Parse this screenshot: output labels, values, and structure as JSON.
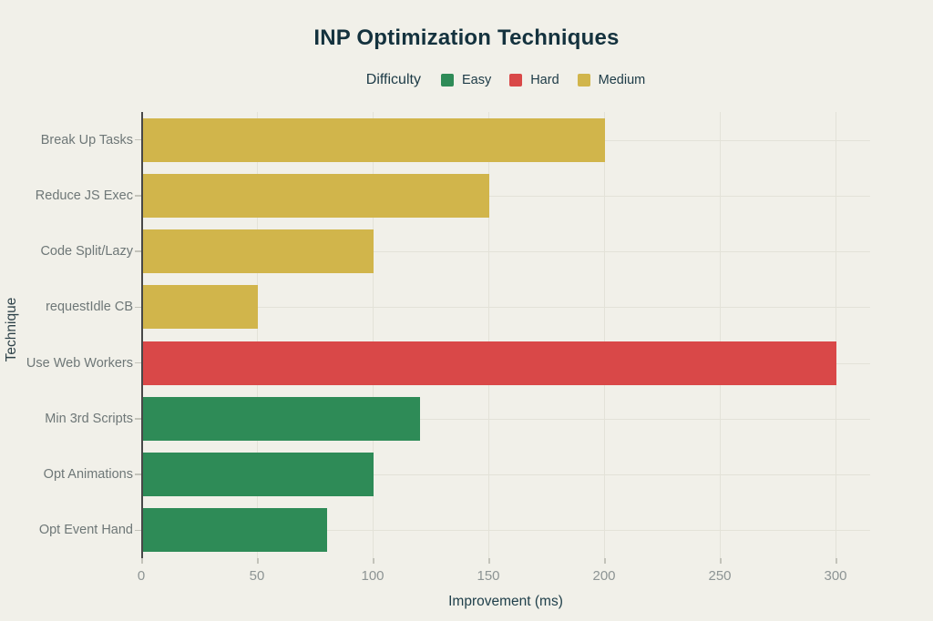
{
  "title": "INP Optimization Techniques",
  "legend": {
    "title": "Difficulty",
    "items": [
      {
        "label": "Easy",
        "color": "#2e8b57"
      },
      {
        "label": "Hard",
        "color": "#d94848"
      },
      {
        "label": "Medium",
        "color": "#d1b54b"
      }
    ]
  },
  "axes": {
    "xlabel": "Improvement (ms)",
    "ylabel": "Technique"
  },
  "chart_data": {
    "type": "bar",
    "orientation": "horizontal",
    "title": "INP Optimization Techniques",
    "xlabel": "Improvement (ms)",
    "ylabel": "Technique",
    "xlim": [
      0,
      300
    ],
    "xticks": [
      0,
      50,
      100,
      150,
      200,
      250,
      300
    ],
    "grid": true,
    "legend_title": "Difficulty",
    "legend_position": "top",
    "categories": [
      "Break Up Tasks",
      "Reduce JS Exec",
      "Code Split/Lazy",
      "requestIdle CB",
      "Use Web Workers",
      "Min 3rd Scripts",
      "Opt Animations",
      "Opt Event Hand"
    ],
    "series": [
      {
        "name": "Improvement (ms)",
        "values": [
          200,
          150,
          100,
          50,
          300,
          120,
          100,
          80
        ]
      }
    ],
    "point_groups": [
      "Medium",
      "Medium",
      "Medium",
      "Medium",
      "Hard",
      "Easy",
      "Easy",
      "Easy"
    ],
    "group_colors": {
      "Easy": "#2e8b57",
      "Hard": "#d94848",
      "Medium": "#d1b54b"
    },
    "colors": {
      "background": "#f1f0e9",
      "gridline": "#e3e2d8",
      "axis_line": "#484848",
      "tick_label": "#8d9494",
      "category_label": "#6e7777",
      "title_text": "#14323e"
    }
  }
}
